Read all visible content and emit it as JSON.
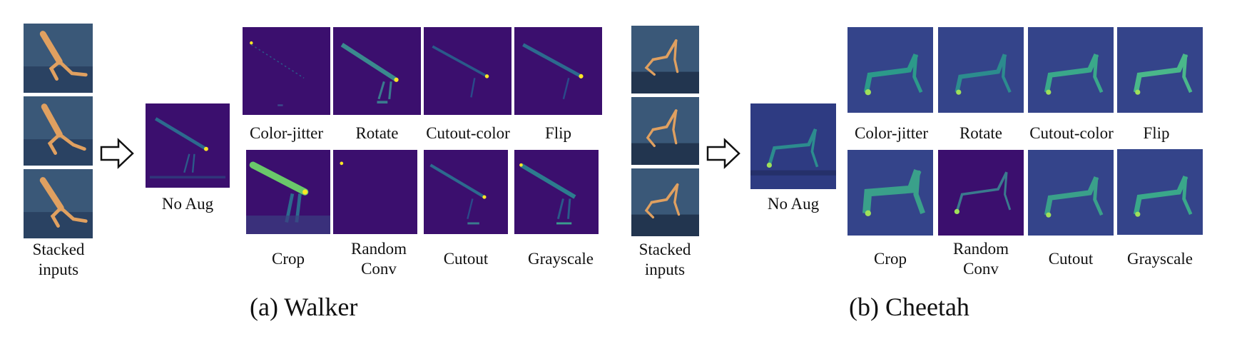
{
  "walker": {
    "stacked_label": "Stacked\ninputs",
    "noaug_label": "No Aug",
    "aug_labels_top": [
      "Color-jitter",
      "Rotate",
      "Cutout-color",
      "Flip"
    ],
    "aug_labels_bottom": [
      "Crop",
      "Random\nConv",
      "Cutout",
      "Grayscale"
    ],
    "caption": "(a)  Walker"
  },
  "cheetah": {
    "stacked_label": "Stacked\ninputs",
    "noaug_label": "No Aug",
    "aug_labels_top": [
      "Color-jitter",
      "Rotate",
      "Cutout-color",
      "Flip"
    ],
    "aug_labels_bottom": [
      "Crop",
      "Random\nConv",
      "Cutout",
      "Grayscale"
    ],
    "caption": "(b)  Cheetah"
  },
  "colors": {
    "frame_bg": "#33506f",
    "body_orange": "#e0a060",
    "heat_bg": "#3b0f6e",
    "heat_mid": "#2c7c8e",
    "heat_hi": "#9fe05a",
    "heat_peak": "#fde725"
  }
}
